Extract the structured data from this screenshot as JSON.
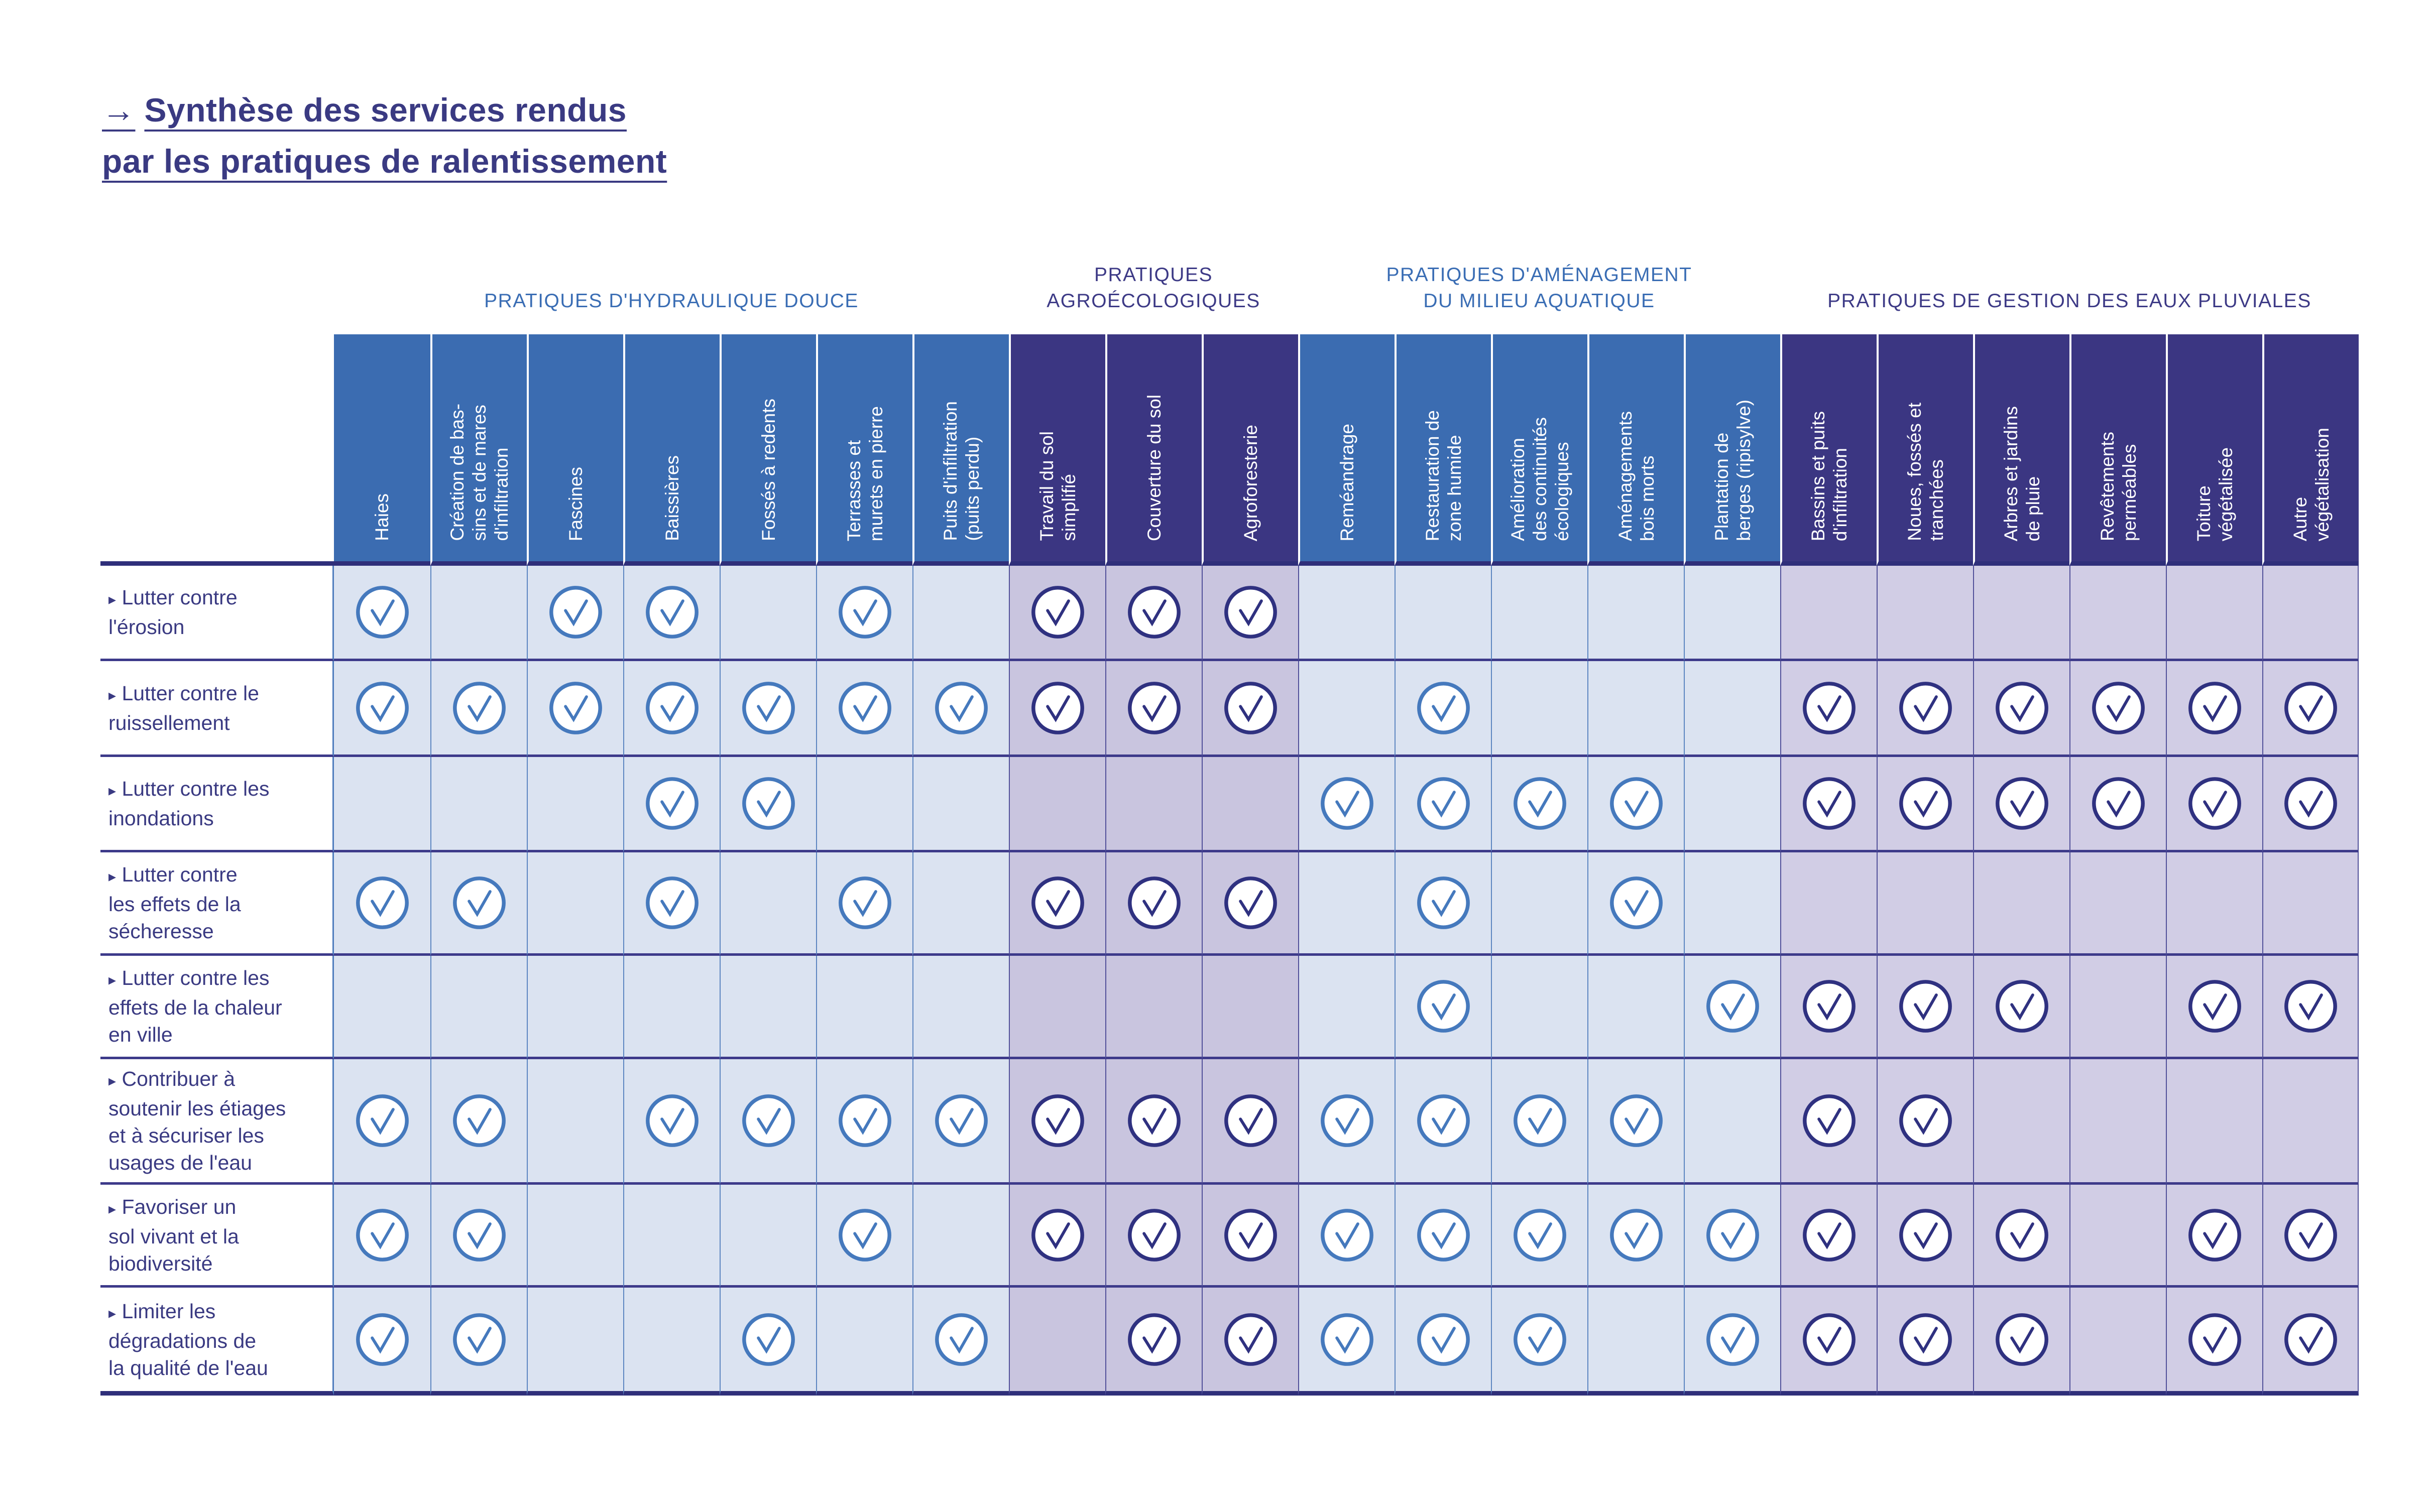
{
  "title": {
    "arrow": "→",
    "lines": [
      "Synthèse des services rendus",
      "par les pratiques de ralentissement"
    ],
    "color": "#3a3a82"
  },
  "table": {
    "bullet": "▸",
    "check_icon": "check-in-circle",
    "groups": [
      {
        "title": "PRATIQUES D'HYDRAULIQUE DOUCE",
        "title_color": "#3a6db4",
        "header_bg": "#3b6cb1",
        "header_text": "#ffffff",
        "body_bg": "#dbe3f1",
        "check_color": "#4579bd",
        "grid_line": "#5d86c1"
      },
      {
        "title": "PRATIQUES\nAGROÉCOLOGIQUES",
        "title_color": "#3d3a86",
        "header_bg": "#3b3682",
        "header_text": "#ffffff",
        "body_bg": "#c9c5df",
        "check_color": "#2f3180",
        "grid_line": "#52519a"
      },
      {
        "title": "PRATIQUES D'AMÉNAGEMENT\nDU MILIEU AQUATIQUE",
        "title_color": "#3a6db4",
        "header_bg": "#3b6cb1",
        "header_text": "#ffffff",
        "body_bg": "#dbe3f1",
        "check_color": "#4579bd",
        "grid_line": "#5d86c1"
      },
      {
        "title": "PRATIQUES DE GESTION DES EAUX PLUVIALES",
        "title_color": "#3d3a86",
        "header_bg": "#3b3682",
        "header_text": "#ffffff",
        "body_bg": "#d1cde5",
        "check_color": "#2f3180",
        "grid_line": "#52519a"
      }
    ],
    "columns": [
      {
        "label": "Haies",
        "group": 0
      },
      {
        "label": "Création de bas-\nsins et de mares\nd'infiltration",
        "group": 0
      },
      {
        "label": "Fascines",
        "group": 0
      },
      {
        "label": "Baissières",
        "group": 0
      },
      {
        "label": "Fossés à redents",
        "group": 0
      },
      {
        "label": "Terrasses et\nmurets en pierre",
        "group": 0
      },
      {
        "label": "Puits d'infiltration\n(puits perdu)",
        "group": 0
      },
      {
        "label": "Travail du sol\nsimplifié",
        "group": 1
      },
      {
        "label": "Couverture du sol",
        "group": 1
      },
      {
        "label": "Agroforesterie",
        "group": 1
      },
      {
        "label": "Reméandrage",
        "group": 2
      },
      {
        "label": "Restauration de\nzone humide",
        "group": 2
      },
      {
        "label": "Amélioration\ndes continuités\nécologiques",
        "group": 2
      },
      {
        "label": "Aménagements\nbois morts",
        "group": 2
      },
      {
        "label": "Plantation de\nberges (ripisylve)",
        "group": 2
      },
      {
        "label": "Bassins et puits\nd'infiltration",
        "group": 3
      },
      {
        "label": "Noues, fossés et\ntranchées",
        "group": 3
      },
      {
        "label": "Arbres et jardins\nde pluie",
        "group": 3
      },
      {
        "label": "Revêtements\nperméables",
        "group": 3
      },
      {
        "label": "Toiture\nvégétalisée",
        "group": 3
      },
      {
        "label": "Autre\nvégétalisation",
        "group": 3
      }
    ],
    "rows": [
      {
        "label": "Lutter contre\nl'érosion",
        "checks": [
          1,
          0,
          1,
          1,
          0,
          1,
          0,
          1,
          1,
          1,
          0,
          0,
          0,
          0,
          0,
          0,
          0,
          0,
          0,
          0,
          0
        ]
      },
      {
        "label": "Lutter contre le\nruissellement",
        "checks": [
          1,
          1,
          1,
          1,
          1,
          1,
          1,
          1,
          1,
          1,
          0,
          1,
          0,
          0,
          0,
          1,
          1,
          1,
          1,
          1,
          1
        ]
      },
      {
        "label": "Lutter contre les\ninondations",
        "checks": [
          0,
          0,
          0,
          1,
          1,
          0,
          0,
          0,
          0,
          0,
          1,
          1,
          1,
          1,
          0,
          1,
          1,
          1,
          1,
          1,
          1
        ]
      },
      {
        "label": "Lutter contre\nles effets de la\nsécheresse",
        "checks": [
          1,
          1,
          0,
          1,
          0,
          1,
          0,
          1,
          1,
          1,
          0,
          1,
          0,
          1,
          0,
          0,
          0,
          0,
          0,
          0,
          0
        ]
      },
      {
        "label": "Lutter contre les\neffets de la chaleur\nen ville",
        "checks": [
          0,
          0,
          0,
          0,
          0,
          0,
          0,
          0,
          0,
          0,
          0,
          1,
          0,
          0,
          1,
          1,
          1,
          1,
          0,
          1,
          1
        ]
      },
      {
        "label": "Contribuer à\nsoutenir les étiages\net à sécuriser les\nusages de l'eau",
        "checks": [
          1,
          1,
          0,
          1,
          1,
          1,
          1,
          1,
          1,
          1,
          1,
          1,
          1,
          1,
          0,
          1,
          1,
          0,
          0,
          0,
          0
        ]
      },
      {
        "label": "Favoriser un\nsol vivant et la\nbiodiversité",
        "checks": [
          1,
          1,
          0,
          0,
          0,
          1,
          0,
          1,
          1,
          1,
          1,
          1,
          1,
          1,
          1,
          1,
          1,
          1,
          0,
          1,
          1
        ]
      },
      {
        "label": "Limiter les\ndégradations de\nla qualité de l'eau",
        "checks": [
          1,
          1,
          0,
          0,
          1,
          0,
          1,
          0,
          1,
          1,
          1,
          1,
          1,
          0,
          1,
          1,
          1,
          1,
          0,
          1,
          1
        ]
      }
    ]
  }
}
